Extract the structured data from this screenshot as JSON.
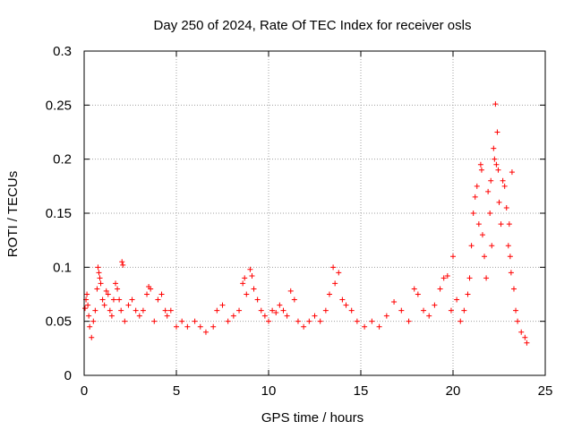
{
  "chart_data": {
    "type": "scatter",
    "title": "Day 250 of 2024, Rate Of TEC Index for receiver osls",
    "xlabel": "GPS time / hours",
    "ylabel": "ROTI / TECUs",
    "xlim": [
      0,
      25
    ],
    "ylim": [
      0,
      0.3
    ],
    "xticks": [
      0,
      5,
      10,
      15,
      20,
      25
    ],
    "xtick_labels": [
      "0",
      "5",
      "10",
      "15",
      "20",
      "25"
    ],
    "yticks": [
      0,
      0.05,
      0.1,
      0.15,
      0.2,
      0.25,
      0.3
    ],
    "ytick_labels": [
      "0",
      "0.05",
      "0.1",
      "0.15",
      "0.2",
      "0.25",
      "0.3"
    ],
    "grid": true,
    "marker": "+",
    "color": "#ff0000",
    "series": [
      {
        "name": "ROTI",
        "points": [
          [
            0.05,
            0.062
          ],
          [
            0.1,
            0.07
          ],
          [
            0.15,
            0.075
          ],
          [
            0.2,
            0.065
          ],
          [
            0.25,
            0.055
          ],
          [
            0.3,
            0.045
          ],
          [
            0.4,
            0.035
          ],
          [
            0.5,
            0.05
          ],
          [
            0.6,
            0.06
          ],
          [
            0.7,
            0.08
          ],
          [
            0.75,
            0.1
          ],
          [
            0.8,
            0.095
          ],
          [
            0.85,
            0.09
          ],
          [
            0.9,
            0.085
          ],
          [
            1.0,
            0.07
          ],
          [
            1.1,
            0.065
          ],
          [
            1.2,
            0.078
          ],
          [
            1.3,
            0.075
          ],
          [
            1.4,
            0.06
          ],
          [
            1.5,
            0.055
          ],
          [
            1.6,
            0.07
          ],
          [
            1.7,
            0.085
          ],
          [
            1.8,
            0.08
          ],
          [
            1.9,
            0.07
          ],
          [
            2.0,
            0.06
          ],
          [
            2.05,
            0.105
          ],
          [
            2.1,
            0.102
          ],
          [
            2.2,
            0.05
          ],
          [
            2.4,
            0.065
          ],
          [
            2.6,
            0.07
          ],
          [
            2.8,
            0.06
          ],
          [
            3.0,
            0.055
          ],
          [
            3.2,
            0.06
          ],
          [
            3.4,
            0.075
          ],
          [
            3.5,
            0.082
          ],
          [
            3.6,
            0.08
          ],
          [
            3.8,
            0.05
          ],
          [
            4.0,
            0.07
          ],
          [
            4.2,
            0.075
          ],
          [
            4.4,
            0.06
          ],
          [
            4.5,
            0.055
          ],
          [
            4.7,
            0.06
          ],
          [
            5.0,
            0.045
          ],
          [
            5.3,
            0.05
          ],
          [
            5.6,
            0.045
          ],
          [
            6.0,
            0.05
          ],
          [
            6.3,
            0.045
          ],
          [
            6.6,
            0.04
          ],
          [
            7.0,
            0.045
          ],
          [
            7.2,
            0.06
          ],
          [
            7.5,
            0.065
          ],
          [
            7.8,
            0.05
          ],
          [
            8.1,
            0.055
          ],
          [
            8.4,
            0.06
          ],
          [
            8.6,
            0.085
          ],
          [
            8.7,
            0.09
          ],
          [
            8.8,
            0.075
          ],
          [
            9.0,
            0.098
          ],
          [
            9.1,
            0.092
          ],
          [
            9.2,
            0.08
          ],
          [
            9.4,
            0.07
          ],
          [
            9.6,
            0.06
          ],
          [
            9.8,
            0.055
          ],
          [
            10.0,
            0.05
          ],
          [
            10.2,
            0.06
          ],
          [
            10.4,
            0.058
          ],
          [
            10.6,
            0.065
          ],
          [
            10.8,
            0.06
          ],
          [
            11.0,
            0.055
          ],
          [
            11.2,
            0.078
          ],
          [
            11.4,
            0.07
          ],
          [
            11.6,
            0.05
          ],
          [
            11.9,
            0.045
          ],
          [
            12.2,
            0.05
          ],
          [
            12.5,
            0.055
          ],
          [
            12.8,
            0.05
          ],
          [
            13.1,
            0.06
          ],
          [
            13.3,
            0.075
          ],
          [
            13.5,
            0.1
          ],
          [
            13.6,
            0.085
          ],
          [
            13.8,
            0.095
          ],
          [
            14.0,
            0.07
          ],
          [
            14.2,
            0.065
          ],
          [
            14.5,
            0.06
          ],
          [
            14.8,
            0.05
          ],
          [
            15.2,
            0.045
          ],
          [
            15.6,
            0.05
          ],
          [
            16.0,
            0.045
          ],
          [
            16.4,
            0.055
          ],
          [
            16.8,
            0.068
          ],
          [
            17.2,
            0.06
          ],
          [
            17.6,
            0.05
          ],
          [
            17.9,
            0.08
          ],
          [
            18.1,
            0.075
          ],
          [
            18.4,
            0.06
          ],
          [
            18.7,
            0.055
          ],
          [
            19.0,
            0.065
          ],
          [
            19.3,
            0.08
          ],
          [
            19.5,
            0.09
          ],
          [
            19.7,
            0.092
          ],
          [
            19.9,
            0.06
          ],
          [
            20.0,
            0.11
          ],
          [
            20.2,
            0.07
          ],
          [
            20.4,
            0.05
          ],
          [
            20.6,
            0.06
          ],
          [
            20.8,
            0.075
          ],
          [
            20.9,
            0.09
          ],
          [
            21.0,
            0.12
          ],
          [
            21.1,
            0.15
          ],
          [
            21.2,
            0.165
          ],
          [
            21.3,
            0.175
          ],
          [
            21.4,
            0.14
          ],
          [
            21.5,
            0.195
          ],
          [
            21.55,
            0.19
          ],
          [
            21.6,
            0.13
          ],
          [
            21.7,
            0.11
          ],
          [
            21.8,
            0.09
          ],
          [
            21.9,
            0.17
          ],
          [
            22.0,
            0.15
          ],
          [
            22.05,
            0.18
          ],
          [
            22.1,
            0.12
          ],
          [
            22.2,
            0.21
          ],
          [
            22.25,
            0.2
          ],
          [
            22.3,
            0.251
          ],
          [
            22.35,
            0.195
          ],
          [
            22.4,
            0.225
          ],
          [
            22.45,
            0.19
          ],
          [
            22.5,
            0.16
          ],
          [
            22.6,
            0.14
          ],
          [
            22.7,
            0.18
          ],
          [
            22.8,
            0.175
          ],
          [
            22.9,
            0.155
          ],
          [
            23.0,
            0.12
          ],
          [
            23.05,
            0.14
          ],
          [
            23.1,
            0.11
          ],
          [
            23.15,
            0.095
          ],
          [
            23.2,
            0.188
          ],
          [
            23.3,
            0.08
          ],
          [
            23.4,
            0.06
          ],
          [
            23.5,
            0.05
          ],
          [
            23.7,
            0.04
          ],
          [
            23.9,
            0.035
          ],
          [
            24.0,
            0.03
          ]
        ]
      }
    ]
  }
}
